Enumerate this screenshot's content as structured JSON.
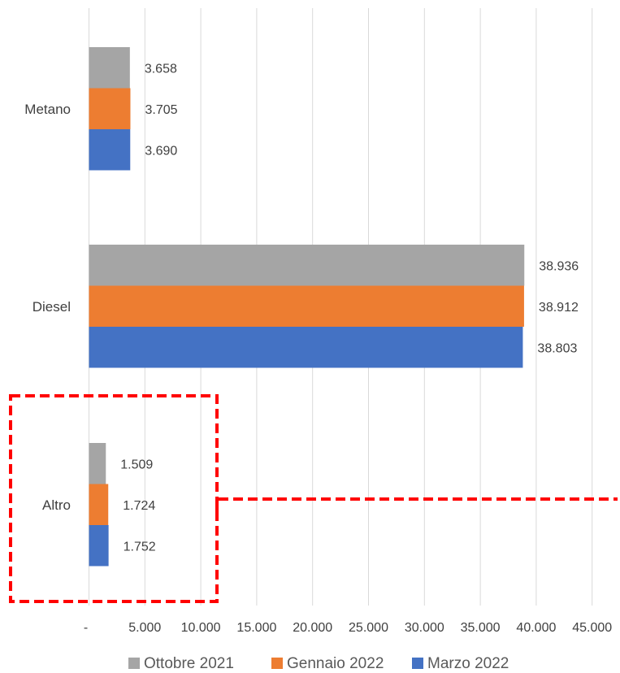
{
  "chart_data": {
    "type": "bar",
    "orientation": "horizontal",
    "categories": [
      "Metano",
      "Diesel",
      "Altro"
    ],
    "series": [
      {
        "name": "Ottobre 2021",
        "color": "#a5a5a5",
        "values": [
          3658,
          38936,
          1509
        ],
        "labels": [
          "3.658",
          "38.936",
          "1.509"
        ]
      },
      {
        "name": "Gennaio 2022",
        "color": "#ed7d31",
        "values": [
          3705,
          38912,
          1724
        ],
        "labels": [
          "3.705",
          "38.912",
          "1.724"
        ]
      },
      {
        "name": "Marzo 2022",
        "color": "#4472c4",
        "values": [
          3690,
          38803,
          1752
        ],
        "labels": [
          "3.690",
          "38.803",
          "1.752"
        ]
      }
    ],
    "xlim": [
      0,
      45000
    ],
    "xticks": [
      0,
      5000,
      10000,
      15000,
      20000,
      25000,
      30000,
      35000,
      40000,
      45000
    ],
    "xtick_labels": [
      "-",
      "5.000",
      "10.000",
      "15.000",
      "20.000",
      "25.000",
      "30.000",
      "35.000",
      "40.000",
      "45.000"
    ],
    "grid": true,
    "legend_position": "bottom",
    "highlight": {
      "category": "Altro",
      "style": "red dashed box with callout line",
      "color": "#ff0000"
    }
  }
}
